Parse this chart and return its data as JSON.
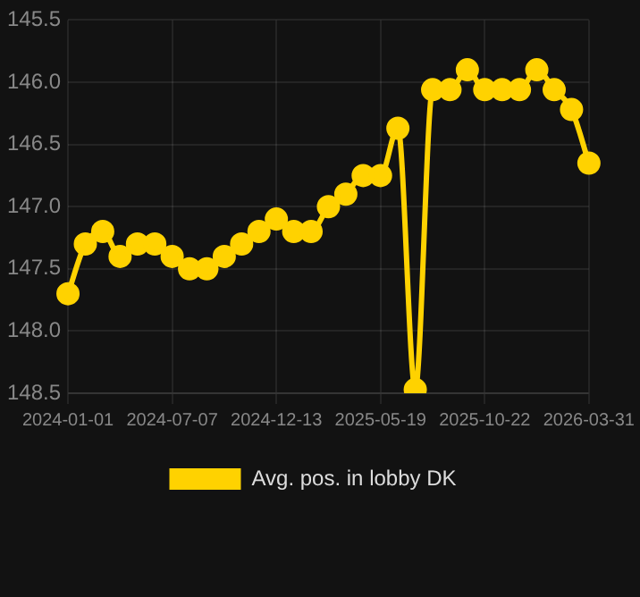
{
  "chart_data": {
    "type": "line",
    "categories": [
      "2024-01-01",
      null,
      null,
      null,
      null,
      null,
      "2024-07-07",
      null,
      null,
      null,
      null,
      null,
      "2024-12-13",
      null,
      null,
      null,
      null,
      null,
      "2025-05-19",
      null,
      null,
      null,
      null,
      null,
      "2025-10-22",
      null,
      null,
      null,
      null,
      null,
      "2026-03-31"
    ],
    "series": [
      {
        "name": "Avg. pos. in lobby DK",
        "color": "#ffd200",
        "values": [
          147.7,
          147.3,
          147.2,
          147.4,
          147.3,
          147.3,
          147.4,
          147.5,
          147.5,
          147.4,
          147.3,
          147.2,
          147.1,
          147.2,
          147.2,
          147.0,
          146.9,
          146.75,
          146.75,
          146.37,
          148.47,
          146.06,
          146.06,
          145.9,
          146.06,
          146.06,
          146.06,
          145.9,
          146.06,
          146.22,
          146.65
        ]
      }
    ],
    "ylim": [
      148.5,
      145.5
    ],
    "yticks": [
      145.5,
      {
        "value": 146,
        "label": "146.0"
      },
      146.5,
      {
        "value": 147,
        "label": "147.0"
      },
      147.5,
      {
        "value": 148,
        "label": "148.0"
      },
      148.5
    ],
    "grid": true,
    "legend": "bottom",
    "marker": "circle",
    "line_style": "solid"
  }
}
